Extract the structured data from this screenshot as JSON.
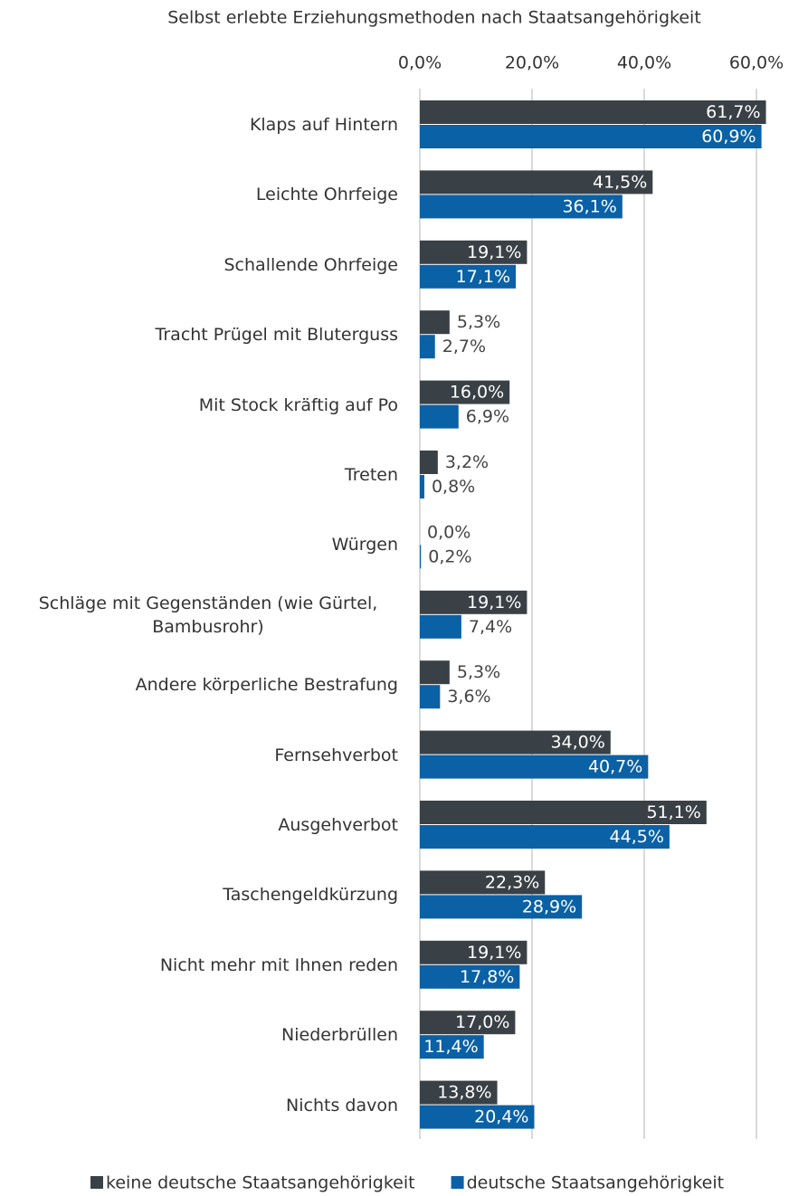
{
  "chart_data": {
    "type": "hbar",
    "title": "Selbst erlebte Erziehungsmethoden  nach Staatsangehörigkeit",
    "categories": [
      "Klaps auf Hintern",
      "Leichte Ohrfeige",
      "Schallende Ohrfeige",
      "Tracht Prügel mit Bluterguss",
      "Mit Stock kräftig auf Po",
      "Treten",
      "Würgen",
      "Schläge mit Gegenständen (wie Gürtel, Bambusrohr)",
      "Andere körperliche Bestrafung",
      "Fernsehverbot",
      "Ausgehverbot",
      "Taschengeldkürzung",
      "Nicht mehr mit Ihnen reden",
      "Niederbrüllen",
      "Nichts davon"
    ],
    "series": [
      {
        "name": "keine deutsche Staatsangehörigkeit",
        "color": "#3a4146",
        "values": [
          61.7,
          41.5,
          19.1,
          5.3,
          16.0,
          3.2,
          0.0,
          19.1,
          5.3,
          34.0,
          51.1,
          22.3,
          19.1,
          17.0,
          13.8
        ],
        "value_labels": [
          "61,7%",
          "41,5%",
          "19,1%",
          "5,3%",
          "16,0%",
          "3,2%",
          "0,0%",
          "19,1%",
          "5,3%",
          "34,0%",
          "51,1%",
          "22,3%",
          "19,1%",
          "17,0%",
          "13,8%"
        ]
      },
      {
        "name": "deutsche Staatsangehörigkeit",
        "color": "#0a61a6",
        "values": [
          60.9,
          36.1,
          17.1,
          2.7,
          6.9,
          0.8,
          0.2,
          7.4,
          3.6,
          40.7,
          44.5,
          28.9,
          17.8,
          11.4,
          20.4
        ],
        "value_labels": [
          "60,9%",
          "36,1%",
          "17,1%",
          "2,7%",
          "6,9%",
          "0,8%",
          "0,2%",
          "7,4%",
          "3,6%",
          "40,7%",
          "44,5%",
          "28,9%",
          "17,8%",
          "11,4%",
          "20,4%"
        ]
      }
    ],
    "xlim": [
      0,
      65
    ],
    "xticks": [
      {
        "value": 0,
        "label": "0,0%"
      },
      {
        "value": 20,
        "label": "20,0%"
      },
      {
        "value": 40,
        "label": "40,0%"
      },
      {
        "value": 60,
        "label": "60,0%"
      }
    ],
    "grid": true,
    "legend": "bottom"
  }
}
